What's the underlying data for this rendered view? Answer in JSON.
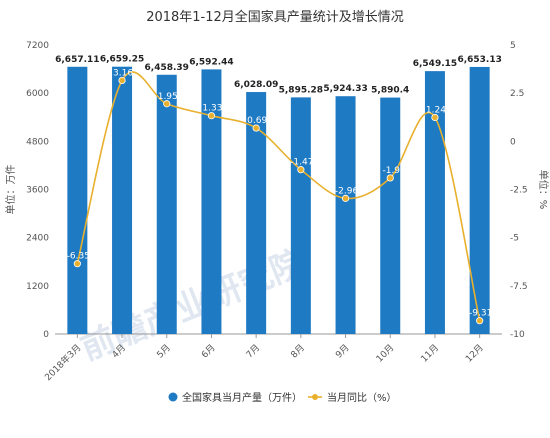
{
  "chart_data": {
    "type": "bar",
    "title": "2018年1-12月全国家具产量统计及增长情况",
    "categories": [
      "2018年3月",
      "4月",
      "5月",
      "6月",
      "7月",
      "8月",
      "9月",
      "10月",
      "11月",
      "12月"
    ],
    "series": [
      {
        "name": "全国家具当月产量（万件）",
        "type": "bar",
        "axis": "left",
        "values": [
          6657.11,
          6659.25,
          6458.39,
          6592.44,
          6028.09,
          5895.28,
          5924.33,
          5890.4,
          6549.15,
          6653.13
        ],
        "labels": [
          "6,657.11",
          "6,659.25",
          "6,458.39",
          "6,592.44",
          "6,028.09",
          "5,895.28",
          "5,924.33",
          "5,890.4",
          "6,549.15",
          "6,653.13"
        ],
        "color": "#1f7ac4"
      },
      {
        "name": "当月同比（%）",
        "type": "line",
        "axis": "right",
        "values": [
          -6.35,
          3.16,
          1.95,
          1.33,
          0.69,
          -1.47,
          -2.96,
          -1.9,
          1.24,
          -9.31
        ],
        "labels": [
          "-6.35",
          "3.16",
          "1.95",
          "1.33",
          "0.69",
          "-1.47",
          "-2.96",
          "-1.9",
          "1.24",
          "-9.31"
        ],
        "color": "#e8b02d"
      }
    ],
    "ylabel_left": "单位：万件",
    "ylabel_right": "单位：%",
    "ylim_left": [
      0,
      7200
    ],
    "yticks_left": [
      "0",
      "1200",
      "2400",
      "3600",
      "4800",
      "6000",
      "7200"
    ],
    "ylim_right": [
      -10,
      5
    ],
    "yticks_right": [
      "-10",
      "-7.5",
      "-5",
      "-2.5",
      "0",
      "2.5",
      "5"
    ],
    "grid": false,
    "legend_position": "bottom",
    "watermark": "前瞻产业研究院"
  }
}
